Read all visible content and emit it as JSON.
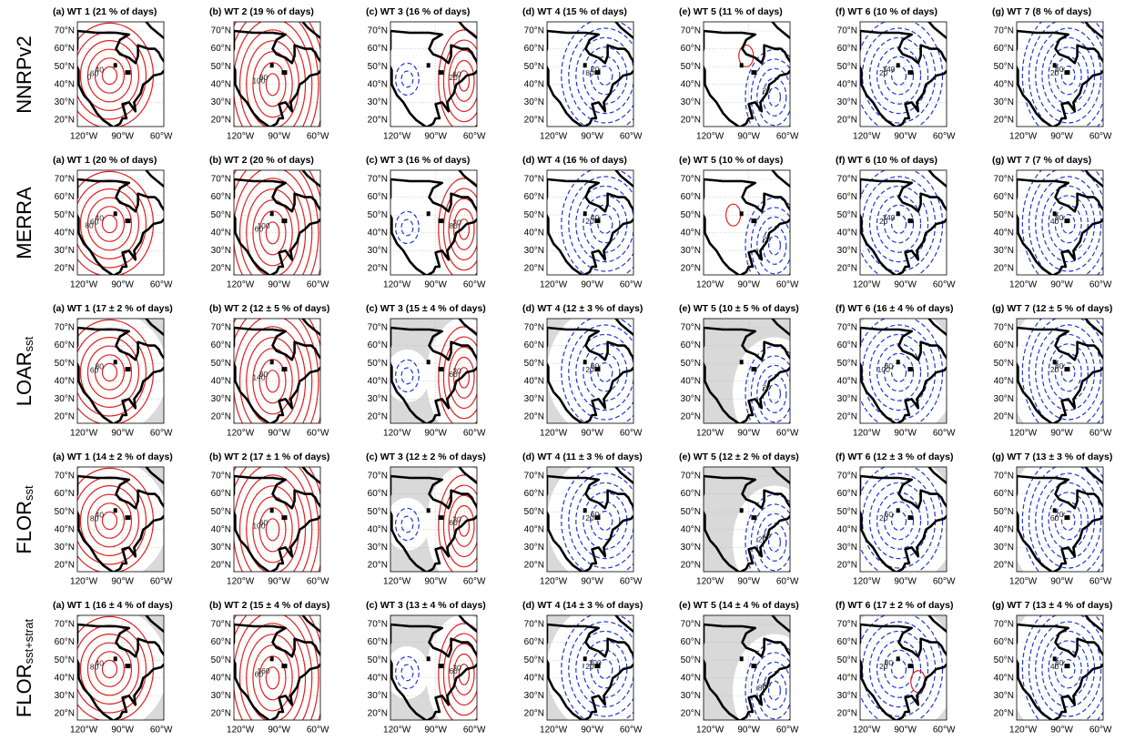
{
  "rows": [
    {
      "label": {
        "name": "NNRPv2"
      },
      "panels": [
        {
          "title": "(a) WT 1  (21 % of days)",
          "contour_labels": [
            "40",
            "60",
            "0"
          ]
        },
        {
          "title": "(b) WT 2  (19 % of days)",
          "contour_labels": [
            "80",
            "100"
          ]
        },
        {
          "title": "(c) WT 3  (16 % of days)",
          "contour_labels": [
            "60",
            "20"
          ]
        },
        {
          "title": "(d) WT 4  (15 % of days)",
          "contour_labels": [
            "20",
            "80"
          ]
        },
        {
          "title": "(e) WT 5  (11 % of days)",
          "contour_labels": [
            "20"
          ]
        },
        {
          "title": "(f) WT 6  (10 % of days)",
          "contour_labels": [
            "140",
            "20"
          ]
        },
        {
          "title": "(g) WT 7  (8 % of days)",
          "contour_labels": [
            "80",
            "20"
          ]
        }
      ]
    },
    {
      "label": {
        "name": "MERRA"
      },
      "panels": [
        {
          "title": "(a) WT 1  (20 % of days)",
          "contour_labels": [
            "40",
            "60",
            "80"
          ]
        },
        {
          "title": "(b) WT 2  (20 % of days)",
          "contour_labels": [
            "100",
            "60"
          ]
        },
        {
          "title": "(c) WT 3  (16 % of days)",
          "contour_labels": [
            "20",
            "80"
          ]
        },
        {
          "title": "(d) WT 4  (16 % of days)",
          "contour_labels": [
            "40",
            "20"
          ]
        },
        {
          "title": "(e) WT 5  (10 % of days)",
          "contour_labels": [
            "20"
          ]
        },
        {
          "title": "(f) WT 6  (10 % of days)",
          "contour_labels": [
            "140",
            "20"
          ]
        },
        {
          "title": "(g) WT 7  (7 % of days)",
          "contour_labels": [
            "80",
            "40"
          ]
        }
      ]
    },
    {
      "label": {
        "name": "LOAR",
        "sub": "sst"
      },
      "panels": [
        {
          "title": "(a) WT 1  (17 ± 2 % of days)",
          "contour_labels": [
            "80",
            "60"
          ]
        },
        {
          "title": "(b) WT 2  (12 ± 5 % of days)",
          "contour_labels": [
            "80",
            "140"
          ]
        },
        {
          "title": "(c) WT 3  (15 ± 4 % of days)",
          "contour_labels": [
            "20",
            "60"
          ]
        },
        {
          "title": "(d) WT 4  (12 ± 3 % of days)",
          "contour_labels": [
            "80",
            "20"
          ]
        },
        {
          "title": "(e) WT 5  (10 ± 5 % of days)",
          "contour_labels": [
            "20"
          ]
        },
        {
          "title": "(f) WT 6  (16 ± 4 % of days)",
          "contour_labels": [
            "80",
            "100"
          ]
        },
        {
          "title": "(g) WT 7  (12 ± 5 % of days)",
          "contour_labels": [
            "80",
            "20"
          ]
        }
      ]
    },
    {
      "label": {
        "name": "FLOR",
        "sub": "sst"
      },
      "panels": [
        {
          "title": "(a) WT 1  (14 ± 2 % of days)",
          "contour_labels": [
            "40",
            "80"
          ]
        },
        {
          "title": "(b) WT 2  (17 ± 1 % of days)",
          "contour_labels": [
            "60",
            "100"
          ]
        },
        {
          "title": "(c) WT 3  (12 ± 2 % of days)",
          "contour_labels": [
            "20",
            "60"
          ]
        },
        {
          "title": "(d) WT 4  (11 ± 3 % of days)",
          "contour_labels": [
            "60",
            "20"
          ]
        },
        {
          "title": "(e) WT 5  (12 ± 2 % of days)",
          "contour_labels": [
            "40",
            "20"
          ]
        },
        {
          "title": "(f) WT 6  (12 ± 3 % of days)",
          "contour_labels": [
            "60",
            "20"
          ]
        },
        {
          "title": "(g) WT 7  (13 ± 3 % of days)",
          "contour_labels": [
            "20",
            "60"
          ]
        }
      ]
    },
    {
      "label": {
        "name": "FLOR",
        "sub": "sst+strat"
      },
      "panels": [
        {
          "title": "(a) WT 1  (16 ± 4 % of days)",
          "contour_labels": [
            "40",
            "80"
          ]
        },
        {
          "title": "(b) WT 2  (15 ± 4 % of days)",
          "contour_labels": [
            "160",
            "60"
          ]
        },
        {
          "title": "(c) WT 3  (13 ± 4 % of days)",
          "contour_labels": [
            "20",
            "60"
          ]
        },
        {
          "title": "(d) WT 4  (14 ± 3 % of days)",
          "contour_labels": [
            "100",
            "20"
          ]
        },
        {
          "title": "(e) WT 5  (14 ± 4 % of days)",
          "contour_labels": [
            "40",
            "80"
          ]
        },
        {
          "title": "(f) WT 6  (17 ± 2 % of days)",
          "contour_labels": [
            "80",
            "20"
          ]
        },
        {
          "title": "(g) WT 7  (13 ± 4 % of days)",
          "contour_labels": [
            "80",
            "40"
          ]
        }
      ]
    }
  ],
  "lat_ticks": [
    "70°N",
    "60°N",
    "50°N",
    "40°N",
    "30°N",
    "20°N"
  ],
  "lon_ticks": [
    "120°W",
    "90°W",
    "60°W"
  ]
}
